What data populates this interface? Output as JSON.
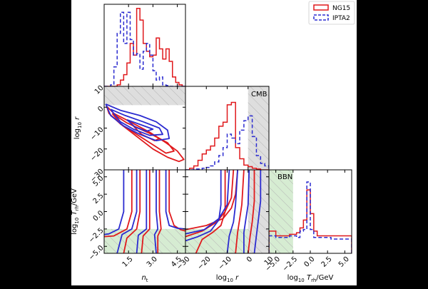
{
  "chart_data": {
    "type": "corner",
    "legend": {
      "placement": "top-right",
      "entries": [
        {
          "label": "NG15",
          "color": "#e0191c",
          "style": "solid"
        },
        {
          "label": "IPTA2",
          "color": "#2b2bd0",
          "style": "dashed"
        }
      ]
    },
    "parameters": [
      {
        "name": "n_t",
        "label": "n",
        "sub": "t",
        "range": [
          0,
          5
        ],
        "ticks": [
          1.5,
          3.0,
          4.5
        ],
        "tick_labels": [
          "1.5",
          "3.0",
          "4.5"
        ]
      },
      {
        "name": "log10_r",
        "label": "log",
        "sub": "10",
        "suffix": " r",
        "range": [
          -30,
          10
        ],
        "ticks": [
          -30,
          -20,
          -10,
          0,
          10
        ],
        "tick_labels": [
          "−30",
          "−20",
          "−10",
          "0",
          "10"
        ]
      },
      {
        "name": "log10_Trh",
        "label": "log",
        "sub": "10",
        "suffix": " T",
        "suffix_sub": "rh",
        "suffix_unit": "/GeV",
        "range": [
          -6,
          6
        ],
        "ticks": [
          -5.0,
          -2.5,
          0.0,
          2.5,
          5.0
        ],
        "tick_labels": [
          "−5.0",
          "−2.5",
          "0.0",
          "2.5",
          "5.0"
        ]
      }
    ],
    "annotations": [
      {
        "text": "CMB",
        "panel": "1-1"
      },
      {
        "text": "BBN",
        "panel": "2-2"
      }
    ],
    "histograms": {
      "n_t": {
        "edges": [
          0.0,
          0.2,
          0.4,
          0.6,
          0.8,
          1.0,
          1.2,
          1.4,
          1.6,
          1.8,
          2.0,
          2.2,
          2.4,
          2.6,
          2.8,
          3.0,
          3.2,
          3.4,
          3.6,
          3.8,
          4.0,
          4.2,
          4.4,
          4.6,
          4.8,
          5.0
        ],
        "NG15": [
          0,
          0,
          0,
          0,
          0.02,
          0.08,
          0.15,
          0.3,
          0.55,
          0.4,
          1.0,
          0.85,
          0.55,
          0.45,
          0.38,
          0.4,
          0.62,
          0.48,
          0.35,
          0.48,
          0.32,
          0.12,
          0.05,
          0.02,
          0
        ],
        "IPTA2": [
          0,
          0,
          0.02,
          0.25,
          0.68,
          0.95,
          0.55,
          0.95,
          0.6,
          0.4,
          0.42,
          0.22,
          0.45,
          0.55,
          0.4,
          0.2,
          0.08,
          0.12,
          0.02,
          0.01,
          0,
          0,
          0,
          0,
          0
        ]
      },
      "log10_r": {
        "edges": [
          -30,
          -28,
          -26,
          -24,
          -22,
          -20,
          -18,
          -16,
          -14,
          -12,
          -10,
          -8,
          -6,
          -4,
          -2,
          0,
          2,
          4,
          6,
          8,
          10
        ],
        "NG15": [
          0,
          0.02,
          0.05,
          0.12,
          0.2,
          0.25,
          0.3,
          0.4,
          0.55,
          0.6,
          0.82,
          0.85,
          0.28,
          0.14,
          0.06,
          0.04,
          0.02,
          0.01,
          0,
          0
        ],
        "IPTA2": [
          0,
          0,
          0.01,
          0.01,
          0.02,
          0.03,
          0.05,
          0.1,
          0.18,
          0.28,
          0.45,
          0.4,
          0.33,
          0.5,
          0.62,
          0.68,
          0.42,
          0.18,
          0.08,
          0.05
        ]
      },
      "log10_Trh": {
        "edges": [
          -6,
          -5,
          -4,
          -3,
          -2,
          -1.5,
          -1,
          -0.5,
          0,
          0.5,
          1,
          2,
          3,
          4,
          5,
          6
        ],
        "NG15": [
          0.28,
          0.22,
          0.22,
          0.24,
          0.26,
          0.32,
          0.42,
          0.8,
          0.5,
          0.28,
          0.22,
          0.22,
          0.22,
          0.22,
          0.22
        ],
        "IPTA2": [
          0.22,
          0.2,
          0.2,
          0.22,
          0.2,
          0.28,
          0.3,
          0.9,
          0.3,
          0.2,
          0.2,
          0.2,
          0.18,
          0.18,
          0.18
        ]
      }
    },
    "contours": {
      "log10_r_vs_n_t": {
        "NG15": [
          [
            [
              0.15,
              0.5
            ],
            [
              0.6,
              -3
            ],
            [
              1.6,
              -7
            ],
            [
              2.8,
              -12
            ],
            [
              3.8,
              -17
            ],
            [
              4.5,
              -21
            ],
            [
              4.9,
              -25
            ],
            [
              4.6,
              -26
            ],
            [
              3.9,
              -24
            ],
            [
              3.0,
              -20
            ],
            [
              2.0,
              -14
            ],
            [
              1.0,
              -8
            ],
            [
              0.3,
              -3
            ],
            [
              0.15,
              0.5
            ]
          ],
          [
            [
              0.5,
              -3
            ],
            [
              1.4,
              -7.5
            ],
            [
              2.8,
              -12.5
            ],
            [
              3.9,
              -17
            ],
            [
              4.3,
              -21
            ],
            [
              3.8,
              -22
            ],
            [
              3.0,
              -18
            ],
            [
              2.0,
              -13
            ],
            [
              1.0,
              -8
            ],
            [
              0.5,
              -3
            ]
          ],
          [
            [
              1.8,
              -9
            ],
            [
              2.8,
              -12.5
            ],
            [
              3.4,
              -15
            ],
            [
              3.1,
              -16
            ],
            [
              2.3,
              -13
            ],
            [
              1.8,
              -9
            ]
          ]
        ],
        "IPTA2": [
          [
            [
              0.1,
              1.5
            ],
            [
              1.0,
              -1.5
            ],
            [
              2.2,
              -4
            ],
            [
              3.2,
              -7
            ],
            [
              3.9,
              -11
            ],
            [
              4.0,
              -15
            ],
            [
              3.2,
              -16
            ],
            [
              2.2,
              -13
            ],
            [
              1.2,
              -9
            ],
            [
              0.4,
              -4
            ],
            [
              0.1,
              1.5
            ]
          ],
          [
            [
              0.4,
              -1
            ],
            [
              1.3,
              -4
            ],
            [
              2.4,
              -7
            ],
            [
              3.4,
              -10
            ],
            [
              3.6,
              -13
            ],
            [
              2.8,
              -13.5
            ],
            [
              1.8,
              -10.5
            ],
            [
              1.0,
              -7
            ],
            [
              0.4,
              -1
            ]
          ],
          [
            [
              1.4,
              -6
            ],
            [
              2.3,
              -8.5
            ],
            [
              3.0,
              -10.5
            ],
            [
              2.6,
              -11.5
            ],
            [
              1.9,
              -9.5
            ],
            [
              1.4,
              -6
            ]
          ]
        ]
      },
      "log10_Trh_vs_n_t": {
        "NG15": [
          [
            [
              2.2,
              6
            ],
            [
              2.2,
              0
            ],
            [
              2.0,
              -2.5
            ],
            [
              1.4,
              -3.8
            ],
            [
              1.2,
              -6
            ]
          ],
          [
            [
              2.8,
              6
            ],
            [
              2.8,
              0
            ],
            [
              2.8,
              -2.5
            ],
            [
              2.4,
              -3.5
            ],
            [
              2.3,
              -6
            ]
          ],
          [
            [
              3.4,
              6
            ],
            [
              3.4,
              0
            ],
            [
              3.5,
              -2.5
            ],
            [
              3.3,
              -3.5
            ],
            [
              3.3,
              -6
            ]
          ],
          [
            [
              4.0,
              6
            ],
            [
              4.0,
              0
            ],
            [
              4.3,
              -2.0
            ],
            [
              4.7,
              -2.6
            ],
            [
              5.0,
              -2.8
            ]
          ],
          [
            [
              1.7,
              6
            ],
            [
              1.7,
              0
            ],
            [
              1.4,
              -2.5
            ],
            [
              0.6,
              -3.5
            ],
            [
              0,
              -3.6
            ]
          ]
        ],
        "IPTA2": [
          [
            [
              1.2,
              6
            ],
            [
              1.2,
              0
            ],
            [
              0.9,
              -2.5
            ],
            [
              0.3,
              -3.2
            ],
            [
              0,
              -3.3
            ]
          ],
          [
            [
              2.0,
              6
            ],
            [
              2.0,
              0
            ],
            [
              1.7,
              -2.5
            ],
            [
              1.1,
              -3.3
            ],
            [
              0.8,
              -6
            ]
          ],
          [
            [
              2.6,
              6
            ],
            [
              2.6,
              0
            ],
            [
              2.6,
              -2.5
            ],
            [
              2.1,
              -3.4
            ],
            [
              2.0,
              -6
            ]
          ],
          [
            [
              3.2,
              6
            ],
            [
              3.2,
              0
            ],
            [
              3.3,
              -2.5
            ],
            [
              3.1,
              -3.3
            ],
            [
              3.2,
              -6
            ]
          ],
          [
            [
              3.8,
              6
            ],
            [
              3.8,
              0
            ],
            [
              4.0,
              -2.0
            ],
            [
              4.5,
              -2.4
            ],
            [
              5.0,
              -2.5
            ]
          ]
        ]
      },
      "log10_Trh_vs_log10_r": {
        "NG15": [
          [
            [
              -25,
              -6
            ],
            [
              -22,
              -4
            ],
            [
              -17,
              -3.0
            ],
            [
              -13,
              -2.0
            ],
            [
              -11,
              0
            ],
            [
              -11,
              6
            ]
          ],
          [
            [
              -30,
              -3.6
            ],
            [
              -22,
              -2.8
            ],
            [
              -15,
              -1.5
            ],
            [
              -11,
              0
            ],
            [
              -8,
              2
            ],
            [
              -7,
              6
            ]
          ],
          [
            [
              -30,
              -2.6
            ],
            [
              -20,
              -2.0
            ],
            [
              -12,
              -1.0
            ],
            [
              -8,
              0.5
            ],
            [
              -6,
              2.5
            ],
            [
              -5,
              6
            ]
          ],
          [
            [
              -6,
              -6
            ],
            [
              -5,
              -3.0
            ],
            [
              -4,
              -1.0
            ],
            [
              -3,
              1.0
            ],
            [
              -2,
              6
            ]
          ],
          [
            [
              0,
              -6
            ],
            [
              1,
              -3.5
            ],
            [
              2,
              -1.5
            ],
            [
              3,
              1.5
            ],
            [
              3,
              6
            ]
          ]
        ],
        "IPTA2": [
          [
            [
              -30,
              -4.2
            ],
            [
              -24,
              -3.6
            ],
            [
              -18,
              -2.8
            ],
            [
              -14,
              -1.2
            ],
            [
              -13,
              1
            ],
            [
              -13,
              6
            ]
          ],
          [
            [
              -30,
              -3.2
            ],
            [
              -21,
              -2.6
            ],
            [
              -14,
              -1.0
            ],
            [
              -10,
              1.0
            ],
            [
              -9,
              6
            ]
          ],
          [
            [
              -10,
              -6
            ],
            [
              -9,
              -3.5
            ],
            [
              -7,
              -1.5
            ],
            [
              -6,
              1.0
            ],
            [
              -5,
              6
            ]
          ],
          [
            [
              -2,
              -6
            ],
            [
              -2,
              -3.0
            ],
            [
              -1,
              -1.0
            ],
            [
              0,
              1.0
            ],
            [
              0.5,
              6
            ]
          ],
          [
            [
              3,
              -6
            ],
            [
              4,
              -3.5
            ],
            [
              5,
              -1.0
            ],
            [
              6,
              1.5
            ],
            [
              6,
              6
            ]
          ]
        ]
      }
    },
    "excluded_regions": [
      {
        "panel": "1-0",
        "x": [
          0,
          5
        ],
        "y": [
          1,
          10
        ],
        "color": "grey",
        "label": ""
      },
      {
        "panel": "1-1",
        "x": [
          0,
          10
        ],
        "y": [
          0,
          1
        ],
        "color": "grey",
        "label": "CMB"
      },
      {
        "panel": "2-0",
        "x": [
          0,
          5
        ],
        "y": [
          -6,
          -2.5
        ],
        "color": "green",
        "label": ""
      },
      {
        "panel": "2-1",
        "x": [
          -30,
          10
        ],
        "y": [
          -6,
          -2.5
        ],
        "color": "green",
        "label": ""
      },
      {
        "panel": "2-1",
        "x": [
          0,
          10
        ],
        "y": [
          -6,
          6
        ],
        "color": "grey",
        "label": ""
      },
      {
        "panel": "2-2",
        "x": [
          -6,
          -2.5
        ],
        "y": [
          0,
          1
        ],
        "color": "green",
        "label": "BBN"
      }
    ]
  }
}
